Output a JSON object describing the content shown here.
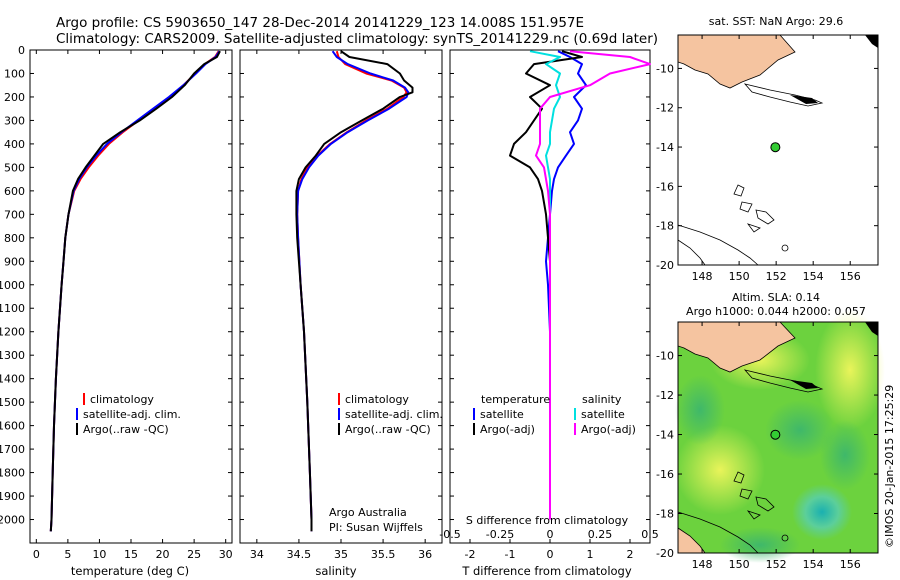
{
  "header": {
    "line1": "Argo profile: CS 5903650_147 28-Dec-2014 20141229_123 14.008S 151.957E",
    "line2": "Climatology: CARS2009. Satellite-adjusted climatology: synTS_20141229.nc (0.69d later)"
  },
  "colors": {
    "climatology": "#ff0000",
    "satellite": "#0000ff",
    "argo": "#000000",
    "argo_adj": "#ff00ff",
    "satellite_s": "#00e0e0",
    "land": "#f5c4a0",
    "float": "#33cc33"
  },
  "chart_data": [
    {
      "type": "line",
      "name": "temperature",
      "xlabel": "temperature (deg C)",
      "ylim": [
        2100,
        0
      ],
      "xlim": [
        -1,
        31
      ],
      "xticks": [
        0,
        5,
        10,
        15,
        20,
        25,
        30
      ],
      "yticks": [
        0,
        100,
        200,
        300,
        400,
        500,
        600,
        700,
        800,
        900,
        1000,
        1100,
        1200,
        1300,
        1400,
        1500,
        1600,
        1700,
        1800,
        1900,
        2000
      ],
      "legend": [
        "climatology",
        "satellite-adj. clim.",
        "Argo(..raw -QC)"
      ],
      "depth": [
        5,
        30,
        60,
        100,
        150,
        200,
        250,
        300,
        350,
        400,
        450,
        500,
        550,
        600,
        700,
        800,
        900,
        1000,
        1200,
        1400,
        1600,
        1800,
        2000,
        2050
      ],
      "series": [
        {
          "name": "climatology",
          "values": [
            28.9,
            28.3,
            26.7,
            25.2,
            23.3,
            21.2,
            18.7,
            16.2,
            13.7,
            11.5,
            9.8,
            8.3,
            7.0,
            6.0,
            5.1,
            4.6,
            4.3,
            4.0,
            3.5,
            3.1,
            2.8,
            2.6,
            2.4,
            2.3
          ]
        },
        {
          "name": "satellite-adj. clim.",
          "values": [
            29.0,
            28.4,
            26.8,
            25.3,
            23.3,
            21.0,
            18.5,
            16.0,
            13.5,
            11.2,
            9.5,
            8.0,
            6.8,
            5.9,
            5.1,
            4.6,
            4.3,
            4.0,
            3.5,
            3.1,
            2.8,
            2.6,
            2.4,
            2.3
          ]
        },
        {
          "name": "Argo(..raw -QC)",
          "values": [
            29.1,
            28.6,
            26.6,
            25.0,
            23.5,
            21.5,
            19.0,
            16.4,
            13.3,
            10.6,
            9.2,
            7.8,
            6.6,
            5.8,
            5.1,
            4.6,
            4.3,
            4.0,
            3.5,
            3.1,
            2.8,
            2.6,
            2.4,
            2.3
          ]
        }
      ]
    },
    {
      "type": "line",
      "name": "salinity",
      "xlabel": "salinity",
      "ylim": [
        2100,
        0
      ],
      "xlim": [
        33.8,
        36.2
      ],
      "xticks": [
        34,
        34.5,
        35,
        35.5,
        36
      ],
      "legend": [
        "climatology",
        "satellite-adj. clim.",
        "Argo(..raw -QC)"
      ],
      "annotation": [
        "Argo Australia",
        "PI: Susan Wijffels"
      ],
      "depth": [
        5,
        30,
        60,
        100,
        130,
        160,
        180,
        200,
        250,
        300,
        350,
        400,
        450,
        500,
        550,
        600,
        700,
        800,
        1000,
        1200,
        1500,
        1800,
        2000,
        2050
      ],
      "series": [
        {
          "name": "climatology",
          "values": [
            34.95,
            34.97,
            35.05,
            35.3,
            35.6,
            35.75,
            35.78,
            35.74,
            35.55,
            35.3,
            35.07,
            34.87,
            34.72,
            34.6,
            34.53,
            34.49,
            34.48,
            34.49,
            34.52,
            34.56,
            34.6,
            34.63,
            34.65,
            34.65
          ]
        },
        {
          "name": "satellite-adj. clim.",
          "values": [
            34.9,
            34.95,
            35.08,
            35.35,
            35.62,
            35.76,
            35.8,
            35.78,
            35.57,
            35.32,
            35.08,
            34.88,
            34.73,
            34.62,
            34.54,
            34.49,
            34.48,
            34.49,
            34.52,
            34.56,
            34.6,
            34.63,
            34.65,
            34.65
          ]
        },
        {
          "name": "Argo(..raw -QC)",
          "values": [
            35.0,
            35.1,
            35.55,
            35.7,
            35.75,
            35.85,
            35.85,
            35.7,
            35.5,
            35.25,
            35.0,
            34.8,
            34.7,
            34.58,
            34.5,
            34.47,
            34.47,
            34.48,
            34.52,
            34.56,
            34.6,
            34.63,
            34.65,
            34.65
          ]
        }
      ]
    },
    {
      "type": "line",
      "name": "difference",
      "xlabel": "T difference from climatology",
      "toplabel": "S difference from climatology",
      "xlim": [
        -2.5,
        2.5
      ],
      "xticks": [
        -2,
        -1,
        0,
        1,
        2
      ],
      "sticks": [
        "-0.5",
        "-0.25",
        "0",
        "0.25",
        "0.5"
      ],
      "legend_headers": [
        "temperature",
        "salinity"
      ],
      "legend": [
        "satellite",
        "Argo(-adj)",
        "satellite",
        "Argo(-adj)"
      ],
      "depth": [
        5,
        30,
        60,
        100,
        150,
        200,
        250,
        300,
        350,
        400,
        450,
        500,
        550,
        600,
        700,
        800,
        900,
        1000,
        1200,
        1400,
        1600,
        2000
      ],
      "series": [
        {
          "name": "T satellite",
          "values": [
            0.2,
            0.5,
            0.8,
            0.7,
            0.9,
            0.6,
            0.8,
            0.7,
            0.5,
            0.6,
            0.4,
            0.2,
            0.1,
            0.05,
            0.0,
            -0.05,
            -0.1,
            -0.05,
            0.0,
            0.0,
            0.0,
            0.0
          ]
        },
        {
          "name": "T Argo(-adj)",
          "values": [
            0.3,
            0.8,
            -0.4,
            -0.6,
            0.0,
            -0.5,
            -0.2,
            -0.4,
            -0.6,
            -0.9,
            -1.0,
            -0.5,
            -0.3,
            -0.2,
            -0.1,
            -0.05,
            0.0,
            0.0,
            0.0,
            0.0,
            0.0,
            0.0
          ]
        },
        {
          "name": "S satellite",
          "values": [
            -0.1,
            0.05,
            -0.02,
            0.05,
            0.03,
            0.05,
            0.02,
            0.01,
            0.0,
            0.0,
            -0.02,
            -0.01,
            0.0,
            0.0,
            0.0,
            0.0,
            0.0,
            0.0,
            0.0,
            0.0,
            0.0,
            0.0
          ]
        },
        {
          "name": "S Argo(-adj)",
          "values": [
            0.1,
            0.4,
            0.5,
            0.3,
            0.2,
            0.0,
            -0.05,
            -0.05,
            -0.05,
            -0.05,
            -0.07,
            -0.03,
            -0.02,
            -0.01,
            0.0,
            0.0,
            0.0,
            0.0,
            0.0,
            0.0,
            0.0,
            0.0
          ]
        }
      ]
    }
  ],
  "maps": {
    "top": {
      "title": "sat. SST: NaN Argo: 29.6",
      "xticks": [
        "148",
        "150",
        "152",
        "154",
        "156"
      ],
      "yticks": [
        "-10",
        "-12",
        "-14",
        "-16",
        "-18",
        "-20"
      ],
      "float_lon": 151.957,
      "float_lat": -14.008
    },
    "bottom": {
      "title1": "Altim. SLA: 0.14",
      "title2": "Argo h1000: 0.044 h2000: 0.057",
      "xticks": [
        "148",
        "150",
        "152",
        "154",
        "156"
      ],
      "yticks": [
        "-10",
        "-12",
        "-14",
        "-16",
        "-18",
        "-20"
      ],
      "float_lon": 151.957,
      "float_lat": -14.008
    }
  },
  "footer": {
    "stamp": "©IMOS 20-Jan-2015 17:25:29"
  }
}
